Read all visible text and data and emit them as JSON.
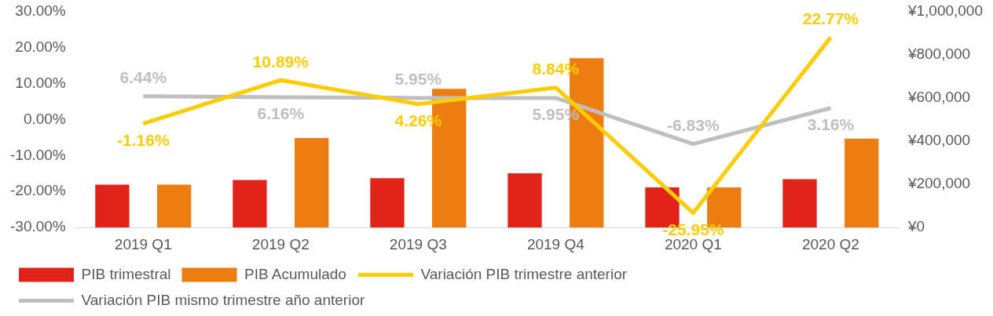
{
  "chart_data": {
    "type": "bar",
    "categories": [
      "2019 Q1",
      "2019 Q2",
      "2019 Q3",
      "2019 Q4",
      "2020 Q1",
      "2020 Q2"
    ],
    "series": [
      {
        "name": "PIB trimestral",
        "color": "#e2231a",
        "axis": "y2",
        "values": [
          198000,
          220000,
          228000,
          251000,
          186000,
          224000
        ]
      },
      {
        "name": "PIB Acumulado",
        "color": "#ee7d11",
        "axis": "y2",
        "values": [
          198000,
          414000,
          642000,
          783000,
          186000,
          411000
        ]
      },
      {
        "name": "Variación PIB trimestre anterior",
        "type": "line",
        "color": "#ffcc00",
        "values": [
          -1.16,
          10.89,
          4.26,
          8.84,
          -25.95,
          22.77
        ],
        "value_labels": [
          "-1.16%",
          "10.89%",
          "4.26%",
          "8.84%",
          "-25.95%",
          "22.77%"
        ]
      },
      {
        "name": "Variación PIB mismo trimestre año anterior",
        "type": "line",
        "color": "#bfbfbf",
        "values": [
          6.44,
          6.16,
          5.95,
          5.95,
          -6.83,
          3.16
        ],
        "value_labels": [
          "6.44%",
          "6.16%",
          "5.95%",
          "5.95%",
          "-6.83%",
          "3.16%"
        ]
      }
    ],
    "ylim": [
      -30,
      30
    ],
    "yticks": [
      {
        "value": -30,
        "label": "-30.00%"
      },
      {
        "value": -20,
        "label": "-20.00%"
      },
      {
        "value": -10,
        "label": "-10.00%"
      },
      {
        "value": 0,
        "label": "0.00%"
      },
      {
        "value": 10,
        "label": "10.00%"
      },
      {
        "value": 20,
        "label": "20.00%"
      },
      {
        "value": 30,
        "label": "30.00%"
      }
    ],
    "y2lim": [
      0,
      1000000
    ],
    "y2ticks": [
      {
        "value": 0,
        "label": "¥0"
      },
      {
        "value": 200000,
        "label": "¥200,000"
      },
      {
        "value": 400000,
        "label": "¥400,000"
      },
      {
        "value": 600000,
        "label": "¥600,000"
      },
      {
        "value": 800000,
        "label": "¥800,000"
      },
      {
        "value": 1000000,
        "label": "¥1,000,000"
      }
    ],
    "legend": "bottom",
    "marker": "none"
  }
}
